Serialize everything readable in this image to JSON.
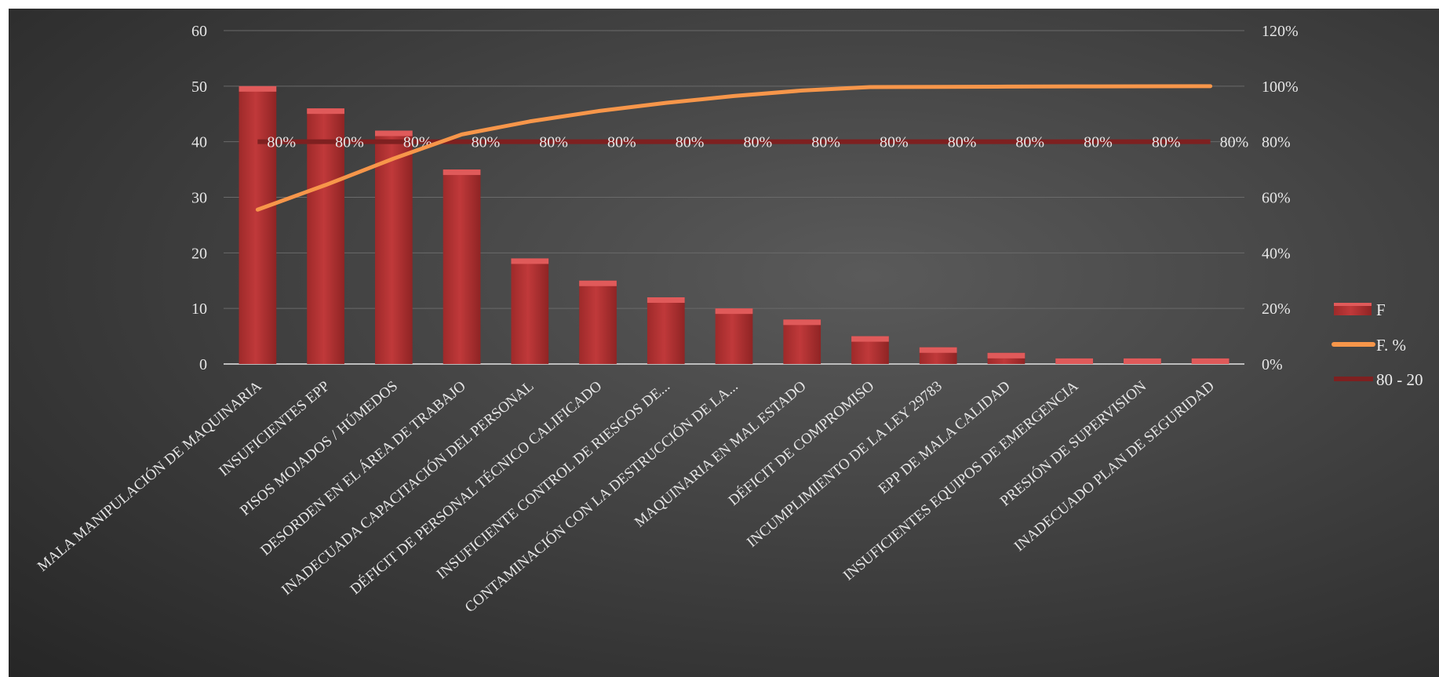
{
  "chart_data": {
    "type": "bar",
    "title": "",
    "categories": [
      "MALA MANIPULACIÓN DE MAQUINARIA",
      "INSUFICIENTES EPP",
      "PISOS MOJADOS / HÚMEDOS",
      "DESORDEN EN EL ÁREA DE TRABAJO",
      "INADECUADA CAPACITACIÓN DEL PERSONAL",
      "DÉFICIT DE PERSONAL TÉCNICO CALIFICADO",
      "INSUFICIENTE CONTROL DE RIESGOS  DE...",
      "CONTAMINACIÓN CON LA DESTRUCCIÓN DE LA...",
      "MAQUINARIA EN MAL ESTADO",
      "DÉFICIT DE COMPROMISO",
      "INCUMPLIMIENTO DE LA LEY 29783",
      "EPP DE MALA CALIDAD",
      "INSUFICIENTES  EQUIPOS DE EMERGENCIA",
      "PRESIÓN DE SUPERVISION",
      "INADECUADO PLAN DE SEGURIDAD"
    ],
    "series": [
      {
        "name": "F",
        "type": "bar",
        "axis": "left",
        "values": [
          50,
          46,
          42,
          35,
          19,
          15,
          12,
          10,
          8,
          5,
          3,
          2,
          1,
          1,
          1
        ]
      },
      {
        "name": "F. %",
        "type": "line",
        "axis": "right",
        "values": [
          0.5556,
          0.6444,
          0.7396,
          0.8262,
          0.8731,
          0.9101,
          0.9398,
          0.9645,
          0.9843,
          0.9966,
          0.9975,
          0.9984,
          0.9992,
          0.9996,
          1.0
        ]
      },
      {
        "name": "80 - 20",
        "type": "line",
        "axis": "right",
        "values": [
          0.8,
          0.8,
          0.8,
          0.8,
          0.8,
          0.8,
          0.8,
          0.8,
          0.8,
          0.8,
          0.8,
          0.8,
          0.8,
          0.8,
          0.8
        ],
        "data_label": "80%"
      }
    ],
    "y_left": {
      "min": 0,
      "max": 60,
      "ticks": [
        "0",
        "10",
        "20",
        "30",
        "40",
        "50",
        "60"
      ]
    },
    "y_right": {
      "min": 0,
      "max": 1.2,
      "ticks": [
        "0%",
        "20%",
        "40%",
        "60%",
        "80%",
        "100%",
        "120%"
      ]
    },
    "grid": true,
    "legend": "right",
    "colors": {
      "bar": "#c0393a",
      "bar_top": "#e05a5a",
      "cumulative": "#f7964a",
      "threshold": "#7e2020",
      "text": "#e6e6e6"
    }
  }
}
